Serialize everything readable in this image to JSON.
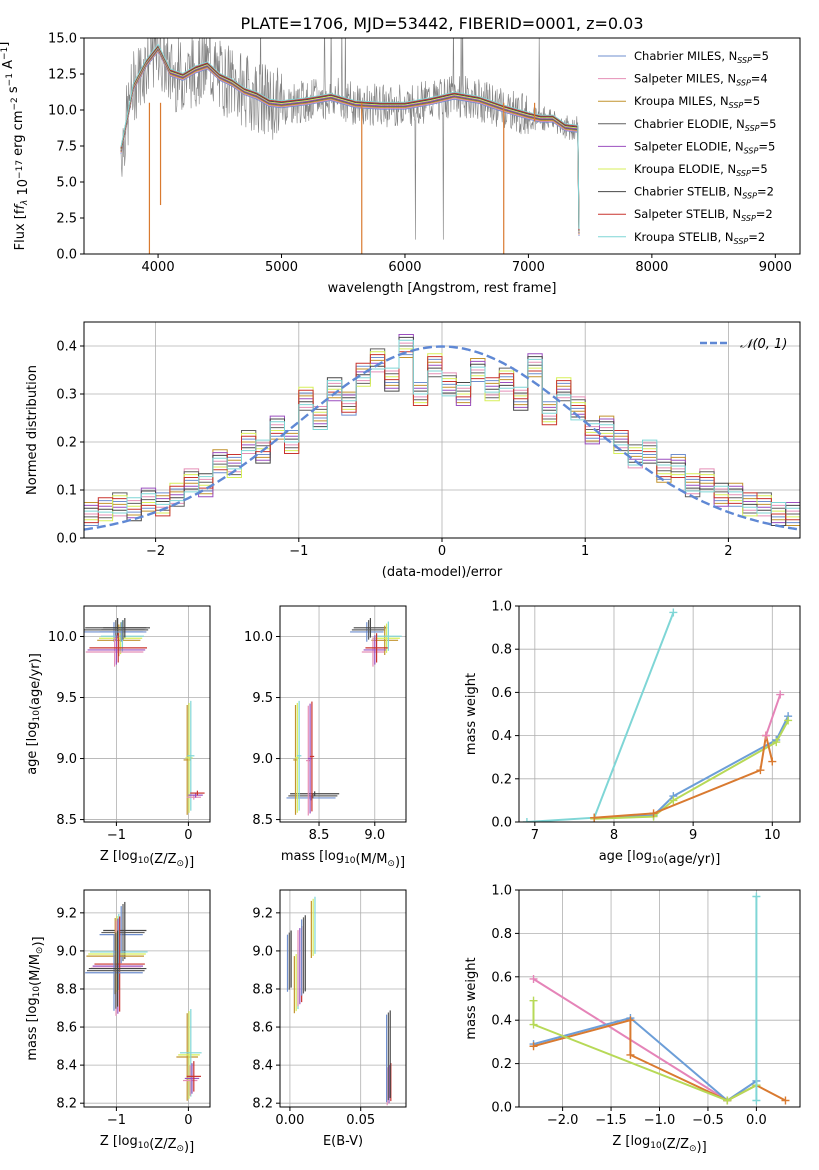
{
  "figure": {
    "title": "PLATE=1706, MJD=53442, FIBERID=0001, z=0.03"
  },
  "colors": {
    "series": [
      "#6f8fcf",
      "#e58fb6",
      "#c2932e",
      "#616161",
      "#9b4fbf",
      "#d7ef5a",
      "#474747",
      "#c9332f",
      "#7fd6d6"
    ],
    "normal_curve": "#5f88d4",
    "spectrum_grey": "#808080",
    "weight_line_orange": "#d97a30",
    "weight_line_pink": "#e584b8",
    "weight_line_blue": "#6c9ed8",
    "weight_line_green": "#b7d957",
    "weight_line_cyan": "#7fd6d6",
    "grid": "#b0b0b0"
  },
  "chart_data": [
    {
      "id": "spectrum",
      "type": "line",
      "xlabel": "wavelength [Angstrom, rest frame]",
      "ylabel": "Flux [f_λ 10^-17 erg cm^-2 s^-1 A^-1]",
      "xlim": [
        3400,
        9200
      ],
      "ylim": [
        0,
        15
      ],
      "xticks": [
        4000,
        5000,
        6000,
        7000,
        8000,
        9000
      ],
      "yticks": [
        0.0,
        2.5,
        5.0,
        7.5,
        10.0,
        12.5,
        15.0
      ],
      "grid": false,
      "legend": "upper-right",
      "x": [
        3700,
        3800,
        3900,
        4000,
        4100,
        4200,
        4300,
        4400,
        4500,
        4600,
        4700,
        4800,
        4900,
        5000,
        5200,
        5400,
        5600,
        5800,
        6000,
        6200,
        6400,
        6600,
        6800,
        7000,
        7100,
        7200,
        7300,
        7400,
        7410
      ],
      "model_y": [
        7.2,
        11.6,
        13.2,
        14.3,
        12.6,
        12.3,
        12.8,
        13.1,
        12.3,
        11.9,
        11.3,
        11.0,
        10.5,
        10.4,
        10.6,
        10.9,
        10.4,
        10.3,
        10.3,
        10.6,
        11.0,
        10.7,
        10.1,
        9.6,
        9.4,
        9.4,
        8.8,
        8.7,
        1.5
      ],
      "series": [
        {
          "name": "Chabrier MILES, N_SSP=5"
        },
        {
          "name": "Salpeter MILES, N_SSP=4"
        },
        {
          "name": "Kroupa MILES, N_SSP=5"
        },
        {
          "name": "Chabrier ELODIE, N_SSP=5"
        },
        {
          "name": "Salpeter ELODIE, N_SSP=5"
        },
        {
          "name": "Kroupa ELODIE, N_SSP=5"
        },
        {
          "name": "Chabrier STELIB, N_SSP=2"
        },
        {
          "name": "Salpeter STELIB, N_SSP=2"
        },
        {
          "name": "Kroupa STELIB, N_SSP=2"
        }
      ]
    },
    {
      "id": "residuals",
      "type": "line",
      "xlabel": "(data-model)/error",
      "ylabel": "Normed distribution",
      "xlim": [
        -2.5,
        2.5
      ],
      "ylim": [
        0,
        0.45
      ],
      "xticks": [
        -2,
        -1,
        0,
        1,
        2
      ],
      "yticks": [
        0.0,
        0.1,
        0.2,
        0.3,
        0.4
      ],
      "grid": true,
      "legend": "upper-right",
      "legend_label": "𝒩(0, 1)",
      "hist_centers": [
        -2.45,
        -2.35,
        -2.25,
        -2.15,
        -2.05,
        -1.95,
        -1.85,
        -1.75,
        -1.65,
        -1.55,
        -1.45,
        -1.35,
        -1.25,
        -1.15,
        -1.05,
        -0.95,
        -0.85,
        -0.75,
        -0.65,
        -0.55,
        -0.45,
        -0.35,
        -0.25,
        -0.15,
        -0.05,
        0.05,
        0.15,
        0.25,
        0.35,
        0.45,
        0.55,
        0.65,
        0.75,
        0.85,
        0.95,
        1.05,
        1.15,
        1.25,
        1.35,
        1.45,
        1.55,
        1.65,
        1.75,
        1.85,
        1.95,
        2.05,
        2.15,
        2.25,
        2.35,
        2.45
      ],
      "hist_values": [
        0.05,
        0.06,
        0.07,
        0.06,
        0.08,
        0.07,
        0.09,
        0.12,
        0.11,
        0.16,
        0.15,
        0.2,
        0.18,
        0.23,
        0.2,
        0.29,
        0.25,
        0.31,
        0.28,
        0.34,
        0.37,
        0.33,
        0.4,
        0.3,
        0.36,
        0.32,
        0.3,
        0.35,
        0.31,
        0.33,
        0.29,
        0.36,
        0.26,
        0.31,
        0.27,
        0.22,
        0.23,
        0.2,
        0.17,
        0.18,
        0.14,
        0.15,
        0.11,
        0.12,
        0.09,
        0.09,
        0.07,
        0.07,
        0.05,
        0.05
      ]
    },
    {
      "id": "age-vs-Z",
      "type": "scatter",
      "xlabel": "Z [log10(Z/Z⊙)]",
      "ylabel": "age [log10(age/yr)]",
      "xlim": [
        -1.45,
        0.3
      ],
      "ylim": [
        8.48,
        10.25
      ],
      "xticks": [
        -1,
        0
      ],
      "yticks": [
        8.5,
        9.0,
        9.5,
        10.0
      ],
      "grid": true,
      "points": [
        {
          "x": -1.0,
          "y": 10.06,
          "xerr": 0.45,
          "yerr": 0.08
        },
        {
          "x": -0.95,
          "y": 9.98,
          "xerr": 0.3,
          "yerr": 0.13
        },
        {
          "x": -1.0,
          "y": 9.89,
          "xerr": 0.4,
          "yerr": 0.12
        },
        {
          "x": -0.9,
          "y": 10.06,
          "xerr": 0.3,
          "yerr": 0.08
        },
        {
          "x": 0.0,
          "y": 9.0,
          "xerr": 0.05,
          "yerr": 0.45
        },
        {
          "x": 0.1,
          "y": 8.7,
          "xerr": 0.1,
          "yerr": 0.02
        }
      ]
    },
    {
      "id": "age-vs-mass",
      "type": "scatter",
      "xlabel": "mass [log10(M/M⊙)]",
      "ylabel": "",
      "xlim": [
        8.15,
        9.28
      ],
      "ylim": [
        8.48,
        10.25
      ],
      "xticks": [
        8.5,
        9.0
      ],
      "yticks": [
        8.5,
        9.0,
        9.5,
        10.0
      ],
      "grid": true,
      "points": [
        {
          "x": 8.95,
          "y": 10.06,
          "xerr": 0.15,
          "yerr": 0.08
        },
        {
          "x": 9.1,
          "y": 9.98,
          "xerr": 0.12,
          "yerr": 0.12
        },
        {
          "x": 9.0,
          "y": 9.89,
          "xerr": 0.1,
          "yerr": 0.12
        },
        {
          "x": 8.45,
          "y": 8.7,
          "xerr": 0.22,
          "yerr": 0.02
        },
        {
          "x": 8.3,
          "y": 9.0,
          "xerr": 0.02,
          "yerr": 0.45
        },
        {
          "x": 8.42,
          "y": 9.0,
          "xerr": 0.02,
          "yerr": 0.45
        }
      ]
    },
    {
      "id": "weight-vs-age",
      "type": "line",
      "xlabel": "age [log10(age/yr)]",
      "ylabel": "mass weight",
      "xlim": [
        6.8,
        10.35
      ],
      "ylim": [
        0,
        1.0
      ],
      "xticks": [
        7,
        8,
        9,
        10
      ],
      "yticks": [
        0.0,
        0.2,
        0.4,
        0.6,
        0.8,
        1.0
      ],
      "grid": true,
      "lines": [
        {
          "color_key": "weight_line_cyan",
          "x": [
            6.9,
            7.75,
            8.75
          ],
          "y": [
            0.0,
            0.02,
            0.97
          ]
        },
        {
          "color_key": "weight_line_blue",
          "x": [
            7.75,
            8.5,
            8.75,
            10.05,
            10.2
          ],
          "y": [
            0.02,
            0.03,
            0.12,
            0.38,
            0.49
          ]
        },
        {
          "color_key": "weight_line_green",
          "x": [
            7.75,
            8.5,
            8.75,
            10.05,
            10.2
          ],
          "y": [
            0.015,
            0.025,
            0.1,
            0.37,
            0.47
          ]
        },
        {
          "color_key": "weight_line_orange",
          "x": [
            7.75,
            8.5,
            9.85,
            9.92,
            10.0
          ],
          "y": [
            0.02,
            0.04,
            0.24,
            0.4,
            0.28
          ]
        },
        {
          "color_key": "weight_line_pink",
          "x": [
            9.92,
            10.1
          ],
          "y": [
            0.4,
            0.59
          ]
        }
      ]
    },
    {
      "id": "mass-vs-Z",
      "type": "scatter",
      "xlabel": "Z [log10(Z/Z⊙)]",
      "ylabel": "mass [log10(M/M⊙)]",
      "xlim": [
        -1.45,
        0.3
      ],
      "ylim": [
        8.18,
        9.32
      ],
      "xticks": [
        -1,
        0
      ],
      "yticks": [
        8.2,
        8.4,
        8.6,
        8.8,
        9.0,
        9.2
      ],
      "grid": true,
      "points": [
        {
          "x": -0.9,
          "y": 9.1,
          "xerr": 0.3,
          "yerr": 0.15
        },
        {
          "x": -1.0,
          "y": 8.98,
          "xerr": 0.4,
          "yerr": 0.2
        },
        {
          "x": -0.98,
          "y": 8.92,
          "xerr": 0.35,
          "yerr": 0.25
        },
        {
          "x": -1.0,
          "y": 8.9,
          "xerr": 0.4,
          "yerr": 0.2
        },
        {
          "x": 0.0,
          "y": 8.45,
          "xerr": 0.15,
          "yerr": 0.23
        },
        {
          "x": 0.05,
          "y": 8.33,
          "xerr": 0.1,
          "yerr": 0.08
        }
      ]
    },
    {
      "id": "mass-vs-EBV",
      "type": "scatter",
      "xlabel": "E(B-V)",
      "ylabel": "",
      "xlim": [
        -0.007,
        0.082
      ],
      "ylim": [
        8.18,
        9.32
      ],
      "xticks": [
        0.0,
        0.05
      ],
      "yticks": [
        8.2,
        8.4,
        8.6,
        8.8,
        9.0,
        9.2
      ],
      "grid": true,
      "points": [
        {
          "x": 0.0,
          "y": 8.95,
          "xerr": 0,
          "yerr": 0.15
        },
        {
          "x": 0.004,
          "y": 8.83,
          "xerr": 0,
          "yerr": 0.15
        },
        {
          "x": 0.007,
          "y": 8.92,
          "xerr": 0,
          "yerr": 0.2
        },
        {
          "x": 0.01,
          "y": 8.98,
          "xerr": 0,
          "yerr": 0.2
        },
        {
          "x": 0.016,
          "y": 9.12,
          "xerr": 0,
          "yerr": 0.15
        },
        {
          "x": 0.07,
          "y": 8.3,
          "xerr": 0,
          "yerr": 0.1
        },
        {
          "x": 0.07,
          "y": 8.45,
          "xerr": 0,
          "yerr": 0.23
        }
      ]
    },
    {
      "id": "weight-vs-Z",
      "type": "line",
      "xlabel": "Z [log10(Z/Z⊙)]",
      "ylabel": "mass weight",
      "xlim": [
        -2.45,
        0.45
      ],
      "ylim": [
        0,
        1.0
      ],
      "xticks": [
        -2.0,
        -1.5,
        -1.0,
        -0.5,
        0.0
      ],
      "yticks": [
        0.0,
        0.2,
        0.4,
        0.6,
        0.8,
        1.0
      ],
      "grid": true,
      "lines": [
        {
          "color_key": "weight_line_pink",
          "x": [
            -2.3,
            -0.3
          ],
          "y": [
            0.59,
            0.03
          ]
        },
        {
          "color_key": "weight_line_blue",
          "x": [
            -2.3,
            -1.3,
            -0.3,
            0.0
          ],
          "y": [
            0.29,
            0.41,
            0.03,
            0.12
          ]
        },
        {
          "color_key": "weight_line_orange",
          "x": [
            -2.3,
            -1.3,
            -1.3,
            -0.3,
            0.0,
            0.3
          ],
          "y": [
            0.28,
            0.4,
            0.24,
            0.03,
            0.1,
            0.03
          ]
        },
        {
          "color_key": "weight_line_green",
          "x": [
            -2.3,
            -2.3,
            -0.3,
            0.0
          ],
          "y": [
            0.49,
            0.38,
            0.03,
            0.1
          ]
        },
        {
          "color_key": "weight_line_cyan",
          "x": [
            0.0,
            0.0
          ],
          "y": [
            0.03,
            0.97
          ]
        }
      ]
    }
  ]
}
